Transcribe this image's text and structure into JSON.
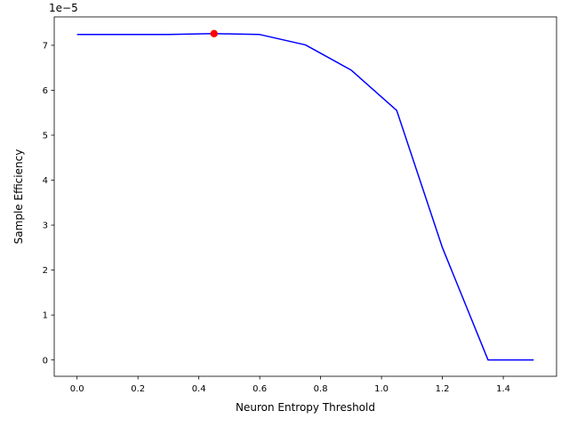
{
  "chart_data": {
    "type": "line",
    "xlabel": "Neuron Entropy Threshold",
    "ylabel": "Sample Efficiency",
    "y_scale_label": "1e−5",
    "xlim": [
      -0.075,
      1.575
    ],
    "ylim": [
      -0.363,
      7.632
    ],
    "x_ticks": [
      0.0,
      0.2,
      0.4,
      0.6,
      0.8,
      1.0,
      1.2,
      1.4
    ],
    "x_tick_labels": [
      "0.0",
      "0.2",
      "0.4",
      "0.6",
      "0.8",
      "1.0",
      "1.2",
      "1.4"
    ],
    "y_ticks": [
      0,
      1,
      2,
      3,
      4,
      5,
      6,
      7
    ],
    "y_tick_labels": [
      "0",
      "1",
      "2",
      "3",
      "4",
      "5",
      "6",
      "7"
    ],
    "grid": false,
    "series": [
      {
        "color": "#0000ff",
        "x": [
          0.0,
          0.15,
          0.3,
          0.45,
          0.6,
          0.75,
          0.9,
          1.05,
          1.2,
          1.35,
          1.5
        ],
        "y": [
          7.24,
          7.24,
          7.24,
          7.26,
          7.24,
          7.01,
          6.45,
          5.55,
          2.5,
          0.0,
          0.0
        ]
      }
    ],
    "highlight": {
      "x": 0.45,
      "y": 7.26,
      "color": "#ff0000"
    }
  }
}
